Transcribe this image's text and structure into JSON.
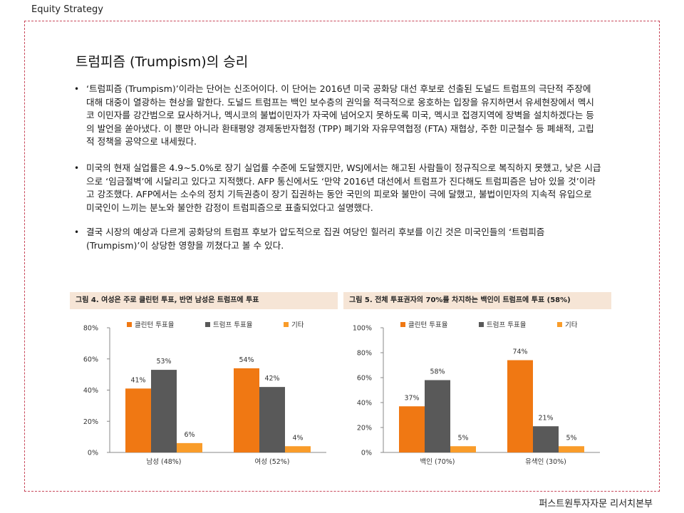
{
  "header": {
    "label": "Equity Strategy"
  },
  "title": "트럼피즘 (Trumpism)의 승리",
  "bullets": [
    "‘트럼피즘 (Trumpism)’이라는 단어는 신조어이다. 이 단어는 2016년 미국 공화당 대선 후보로 선출된 도널드 트럼프의 극단적 주장에 대해 대중이 열광하는 현상을 말한다. 도널드 트럼프는 백인 보수층의 권익을 적극적으로 옹호하는 입장을 유지하면서 유세현장에서 멕시코 이민자를 강간범으로 묘사하거나, 멕시코의 불법이민자가 자국에 넘어오지 못하도록 미국, 멕시코 접경지역에 장벽을 설치하겠다는 등의 발언을 쏟아냈다. 이 뿐만 아니라 환태평양 경제동반자협정 (TPP) 폐기와 자유무역협정 (FTA) 재협상, 주한 미군철수 등 폐쇄적, 고립적 정책을 공약으로 내세웠다.",
    "미국의 현재 실업률은 4.9~5.0%로 장기 실업률 수준에 도달했지만, WSJ에서는 해고된 사람들이 정규직으로 복직하지 못했고, 낮은 시급으로 ‘임금절벽’에 시달리고 있다고 지적했다. AFP 통신에서도 ‘만약 2016년 대선에서 트럼프가 진다해도 트럼피즘은 남아 있을 것’이라고 강조했다. AFP에서는 소수의 정치 기득권층이 장기 집권하는 동안 국민의 피로와 불만이 극에 달했고, 불법이민자의 지속적 유입으로 미국인이 느끼는 분노와 불안한 감정이 트럼피즘으로 표출되었다고 설명했다.",
    "결국 시장의 예상과 다르게 공화당의 트럼프 후보가 압도적으로 집권 여당인 힐러리 후보를 이긴 것은 미국인들의 ‘트럼피즘 (Trumpism)’이 상당한 영향을 끼쳤다고 볼 수 있다."
  ],
  "figures": [
    {
      "title": "그림 4. 여성은 주로 클린턴 투표, 반면 남성은 트럼프에 투표"
    },
    {
      "title": "그림 5. 전체 투표권자의 70%를 차지하는 백인이 트럼프에 투표 (58%)"
    }
  ],
  "footer": {
    "label": "퍼스트원투자자문 리서치본부"
  },
  "colors": {
    "clinton": "#f07813",
    "trump": "#595959",
    "other": "#f99c2a",
    "frame": "#c8485a",
    "header_bg": "#f6e5d6"
  },
  "chart_data": [
    {
      "type": "bar",
      "categories": [
        "남성 (48%)",
        "여성 (52%)"
      ],
      "series": [
        {
          "name": "클린턴 투표율",
          "values": [
            41,
            54
          ]
        },
        {
          "name": "트럼프 투표율",
          "values": [
            53,
            42
          ]
        },
        {
          "name": "기타",
          "values": [
            6,
            4
          ]
        }
      ],
      "data_labels": [
        [
          "41%",
          "53%",
          "6%"
        ],
        [
          "54%",
          "42%",
          "4%"
        ]
      ],
      "ylim": [
        0,
        80
      ],
      "yticks": [
        "0%",
        "20%",
        "40%",
        "60%",
        "80%"
      ],
      "legend": "top",
      "grid": false
    },
    {
      "type": "bar",
      "categories": [
        "백인 (70%)",
        "유색인 (30%)"
      ],
      "series": [
        {
          "name": "클린턴 투표율",
          "values": [
            37,
            74
          ]
        },
        {
          "name": "트럼프 투표율",
          "values": [
            58,
            21
          ]
        },
        {
          "name": "기타",
          "values": [
            5,
            5
          ]
        }
      ],
      "data_labels": [
        [
          "37%",
          "58%",
          "5%"
        ],
        [
          "74%",
          "21%",
          "5%"
        ]
      ],
      "ylim": [
        0,
        100
      ],
      "yticks": [
        "0%",
        "20%",
        "40%",
        "60%",
        "80%",
        "100%"
      ],
      "legend": "top",
      "grid": false
    }
  ]
}
